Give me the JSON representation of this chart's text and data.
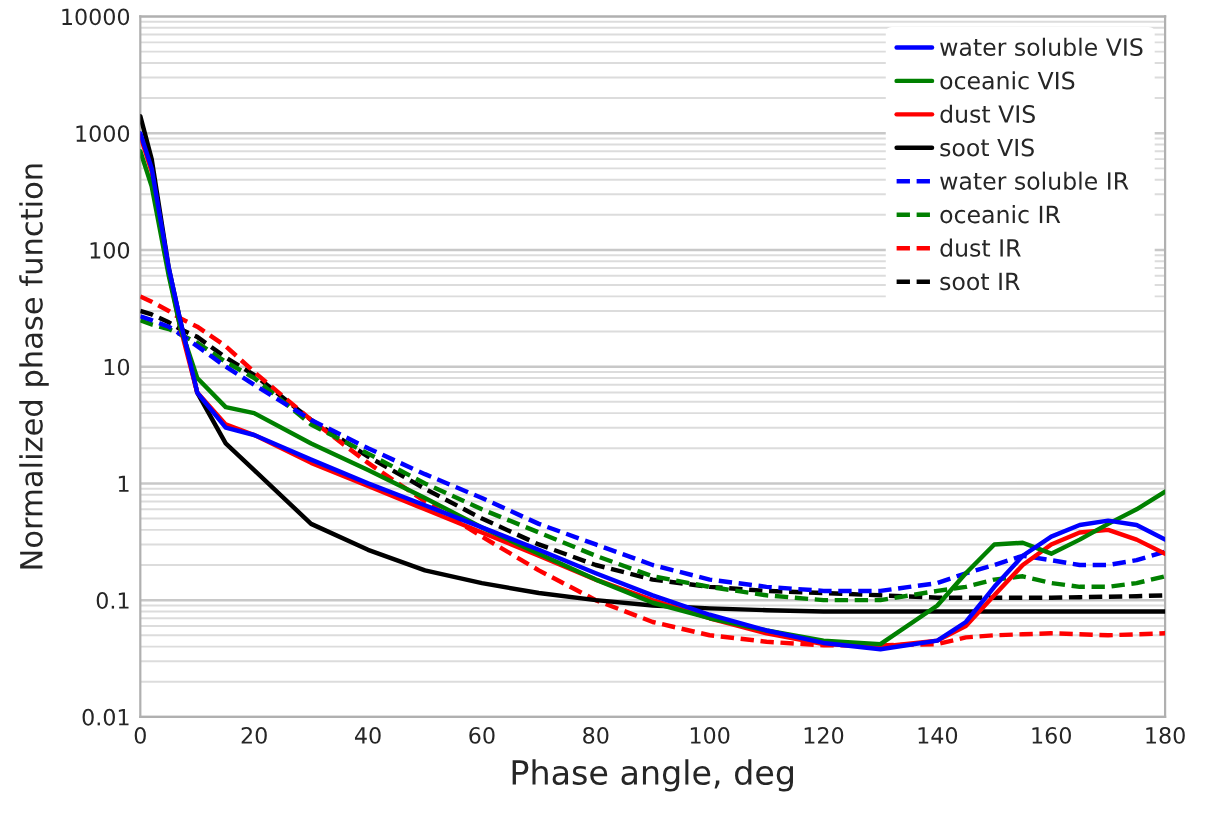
{
  "chart_data": {
    "type": "line",
    "xlabel": "Phase angle, deg",
    "ylabel": "Normalized phase function",
    "xlim": [
      0,
      180
    ],
    "xticks": [
      0,
      20,
      40,
      60,
      80,
      100,
      120,
      140,
      160,
      180
    ],
    "ylim": [
      0.01,
      10000
    ],
    "yticks": [
      0.01,
      0.1,
      1,
      10,
      100,
      1000,
      10000
    ],
    "log": "y",
    "grid": "y",
    "legend": "top right",
    "marker": "none",
    "x": [
      0,
      2,
      5,
      7,
      10,
      15,
      20,
      30,
      40,
      50,
      60,
      70,
      80,
      90,
      100,
      110,
      120,
      130,
      140,
      145,
      150,
      155,
      160,
      165,
      170,
      175,
      180
    ],
    "series": [
      {
        "name": "water soluble VIS",
        "color": "#0000ff",
        "line_style": "solid",
        "values": [
          1000,
          500,
          70,
          25,
          6,
          3,
          2.6,
          1.6,
          1.0,
          0.65,
          0.42,
          0.27,
          0.17,
          0.11,
          0.075,
          0.055,
          0.043,
          0.038,
          0.045,
          0.065,
          0.13,
          0.24,
          0.35,
          0.44,
          0.48,
          0.44,
          0.33
        ]
      },
      {
        "name": "oceanic VIS",
        "color": "#008000",
        "line_style": "solid",
        "values": [
          700,
          350,
          60,
          22,
          8,
          4.5,
          4,
          2.2,
          1.3,
          0.75,
          0.42,
          0.25,
          0.15,
          0.095,
          0.07,
          0.055,
          0.045,
          0.042,
          0.09,
          0.17,
          0.3,
          0.31,
          0.25,
          0.33,
          0.45,
          0.6,
          0.85
        ]
      },
      {
        "name": "dust VIS",
        "color": "#ff0000",
        "line_style": "solid",
        "values": [
          950,
          470,
          65,
          22,
          6,
          3.2,
          2.6,
          1.5,
          0.95,
          0.6,
          0.38,
          0.24,
          0.15,
          0.1,
          0.07,
          0.052,
          0.042,
          0.04,
          0.045,
          0.06,
          0.11,
          0.2,
          0.3,
          0.38,
          0.4,
          0.33,
          0.25
        ]
      },
      {
        "name": "soot VIS",
        "color": "#000000",
        "line_style": "solid",
        "values": [
          1400,
          600,
          70,
          25,
          6,
          2.2,
          1.3,
          0.45,
          0.27,
          0.18,
          0.14,
          0.115,
          0.1,
          0.09,
          0.085,
          0.082,
          0.08,
          0.08,
          0.08,
          0.08,
          0.08,
          0.08,
          0.08,
          0.08,
          0.08,
          0.08,
          0.08
        ]
      },
      {
        "name": "water soluble IR",
        "color": "#0000ff",
        "line_style": "dashed",
        "values": [
          27,
          25,
          22,
          19,
          15,
          10,
          7,
          3.5,
          2,
          1.2,
          0.75,
          0.45,
          0.3,
          0.2,
          0.15,
          0.13,
          0.12,
          0.12,
          0.14,
          0.17,
          0.2,
          0.24,
          0.22,
          0.2,
          0.2,
          0.22,
          0.26
        ]
      },
      {
        "name": "oceanic IR",
        "color": "#008000",
        "line_style": "dashed",
        "values": [
          25,
          23,
          21,
          19,
          16,
          11,
          8,
          3.2,
          1.8,
          1.0,
          0.6,
          0.38,
          0.24,
          0.16,
          0.13,
          0.11,
          0.1,
          0.1,
          0.12,
          0.13,
          0.15,
          0.16,
          0.14,
          0.13,
          0.13,
          0.14,
          0.16
        ]
      },
      {
        "name": "dust IR",
        "color": "#ff0000",
        "line_style": "dashed",
        "values": [
          40,
          36,
          30,
          26,
          22,
          15,
          9,
          3.5,
          1.5,
          0.7,
          0.35,
          0.18,
          0.1,
          0.065,
          0.05,
          0.044,
          0.041,
          0.041,
          0.042,
          0.048,
          0.05,
          0.051,
          0.052,
          0.051,
          0.05,
          0.051,
          0.052
        ]
      },
      {
        "name": "soot IR",
        "color": "#000000",
        "line_style": "dashed",
        "values": [
          30,
          28,
          24,
          21,
          18,
          12,
          8.5,
          3.5,
          1.7,
          0.9,
          0.5,
          0.3,
          0.2,
          0.15,
          0.13,
          0.12,
          0.115,
          0.11,
          0.105,
          0.105,
          0.105,
          0.105,
          0.105,
          0.106,
          0.107,
          0.108,
          0.11
        ]
      }
    ]
  }
}
